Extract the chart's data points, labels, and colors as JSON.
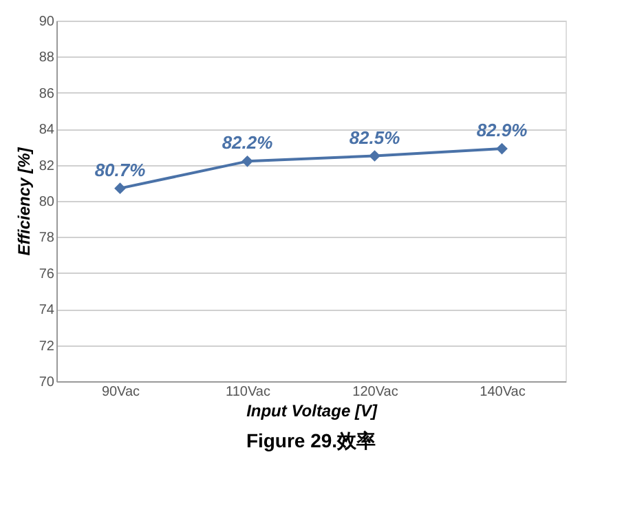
{
  "chart_data": {
    "type": "line",
    "categories": [
      "90Vac",
      "110Vac",
      "120Vac",
      "140Vac"
    ],
    "series": [
      {
        "color": "#4a72a8",
        "values": [
          80.7,
          82.2,
          82.5,
          82.9
        ],
        "value_labels": [
          "80.7%",
          "82.2%",
          "82.5%",
          "82.9%"
        ]
      }
    ],
    "xlabel": "Input Voltage [V]",
    "ylabel": "Efficiency [%]",
    "ylim": [
      70,
      90
    ],
    "yticks": [
      70,
      72,
      74,
      76,
      78,
      80,
      82,
      84,
      86,
      88,
      90
    ],
    "grid": "y",
    "marker": "diamond",
    "line_style": "solid",
    "legend": false,
    "annotations": [
      "Figure 29.效率"
    ]
  }
}
